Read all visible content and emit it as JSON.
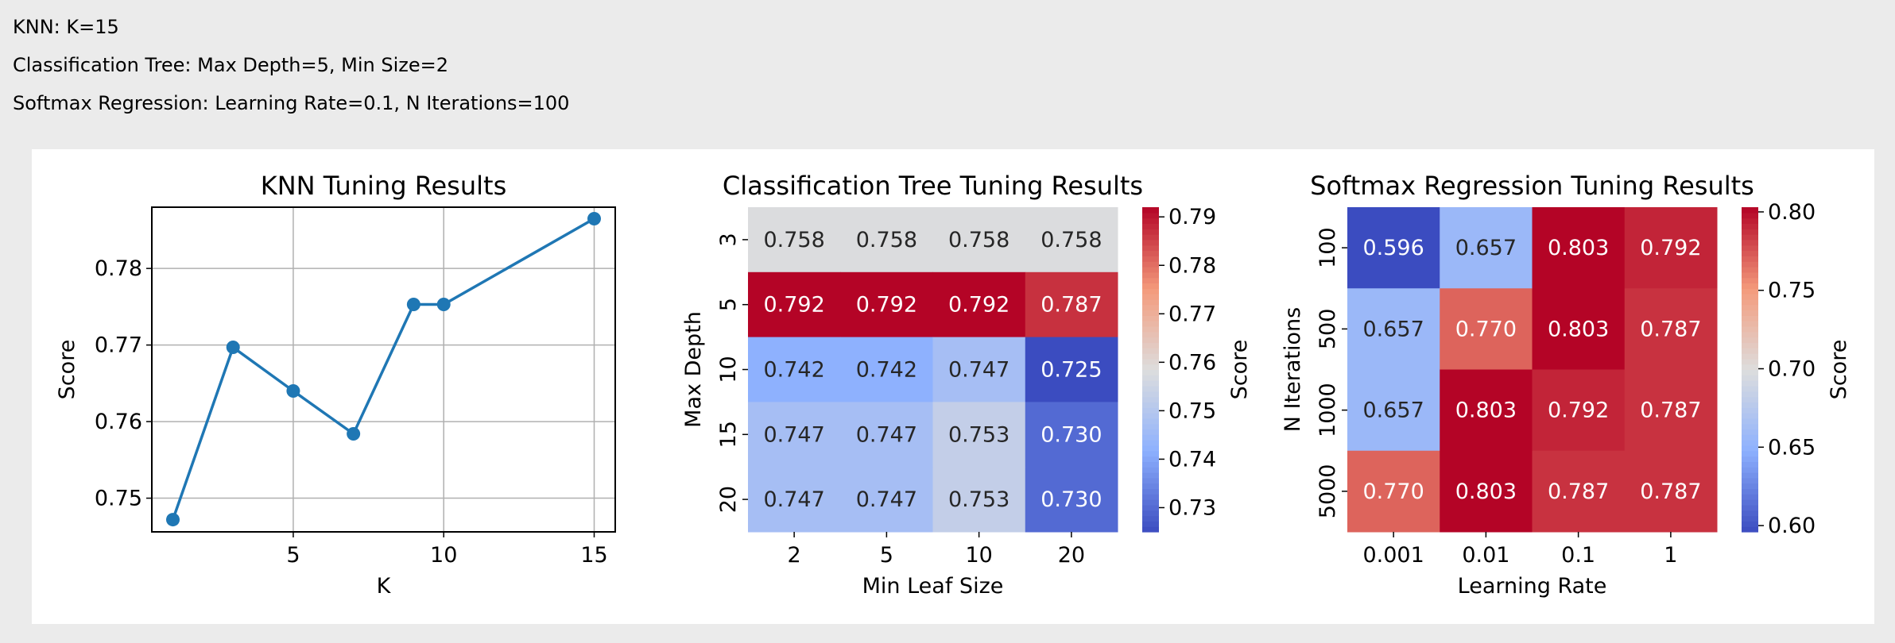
{
  "summary": {
    "lines": [
      "KNN: K=15",
      "Classification Tree: Max Depth=5, Min Size=2",
      "Softmax Regression: Learning Rate=0.1, N Iterations=100"
    ]
  },
  "chart_data": [
    {
      "type": "line",
      "title": "KNN Tuning Results",
      "xlabel": "K",
      "ylabel": "Score",
      "x": [
        1,
        3,
        5,
        7,
        9,
        10,
        15
      ],
      "y": [
        0.7472,
        0.7697,
        0.764,
        0.7584,
        0.7753,
        0.7753,
        0.7865
      ],
      "xlim": [
        0.3,
        15.7
      ],
      "ylim": [
        0.7456,
        0.788
      ],
      "xticks": [
        5,
        10,
        15
      ],
      "yticks": [
        0.75,
        0.76,
        0.77,
        0.78
      ],
      "ytick_labels": [
        "0.75",
        "0.76",
        "0.77",
        "0.78"
      ],
      "grid": true,
      "color": "#1f77b4"
    },
    {
      "type": "heatmap",
      "title": "Classification Tree Tuning Results",
      "xlabel": "Min Leaf Size",
      "ylabel": "Max Depth",
      "x_categories": [
        "2",
        "5",
        "10",
        "20"
      ],
      "y_categories": [
        "3",
        "5",
        "10",
        "15",
        "20"
      ],
      "cell_labels": [
        [
          "0.758",
          "0.758",
          "0.758",
          "0.758"
        ],
        [
          "0.792",
          "0.792",
          "0.792",
          "0.787"
        ],
        [
          "0.742",
          "0.742",
          "0.747",
          "0.725"
        ],
        [
          "0.747",
          "0.747",
          "0.753",
          "0.730"
        ],
        [
          "0.747",
          "0.747",
          "0.753",
          "0.730"
        ]
      ],
      "colormap": "coolwarm",
      "vmin": 0.725,
      "vmax": 0.792,
      "colorbar_label": "Score",
      "colorbar_ticks": [
        0.73,
        0.74,
        0.75,
        0.76,
        0.77,
        0.78,
        0.79
      ],
      "colorbar_tick_labels": [
        "0.73",
        "0.74",
        "0.75",
        "0.76",
        "0.77",
        "0.78",
        "0.79"
      ]
    },
    {
      "type": "heatmap",
      "title": "Softmax Regression Tuning Results",
      "xlabel": "Learning Rate",
      "ylabel": "N Iterations",
      "x_categories": [
        "0.001",
        "0.01",
        "0.1",
        "1"
      ],
      "y_categories": [
        "100",
        "500",
        "1000",
        "5000"
      ],
      "cell_labels": [
        [
          "0.596",
          "0.657",
          "0.803",
          "0.792"
        ],
        [
          "0.657",
          "0.770",
          "0.803",
          "0.787"
        ],
        [
          "0.657",
          "0.803",
          "0.792",
          "0.787"
        ],
        [
          "0.770",
          "0.803",
          "0.787",
          "0.787"
        ]
      ],
      "colormap": "coolwarm",
      "vmin": 0.596,
      "vmax": 0.803,
      "colorbar_label": "Score",
      "colorbar_ticks": [
        0.6,
        0.65,
        0.7,
        0.75,
        0.8
      ],
      "colorbar_tick_labels": [
        "0.60",
        "0.65",
        "0.70",
        "0.75",
        "0.80"
      ]
    }
  ]
}
